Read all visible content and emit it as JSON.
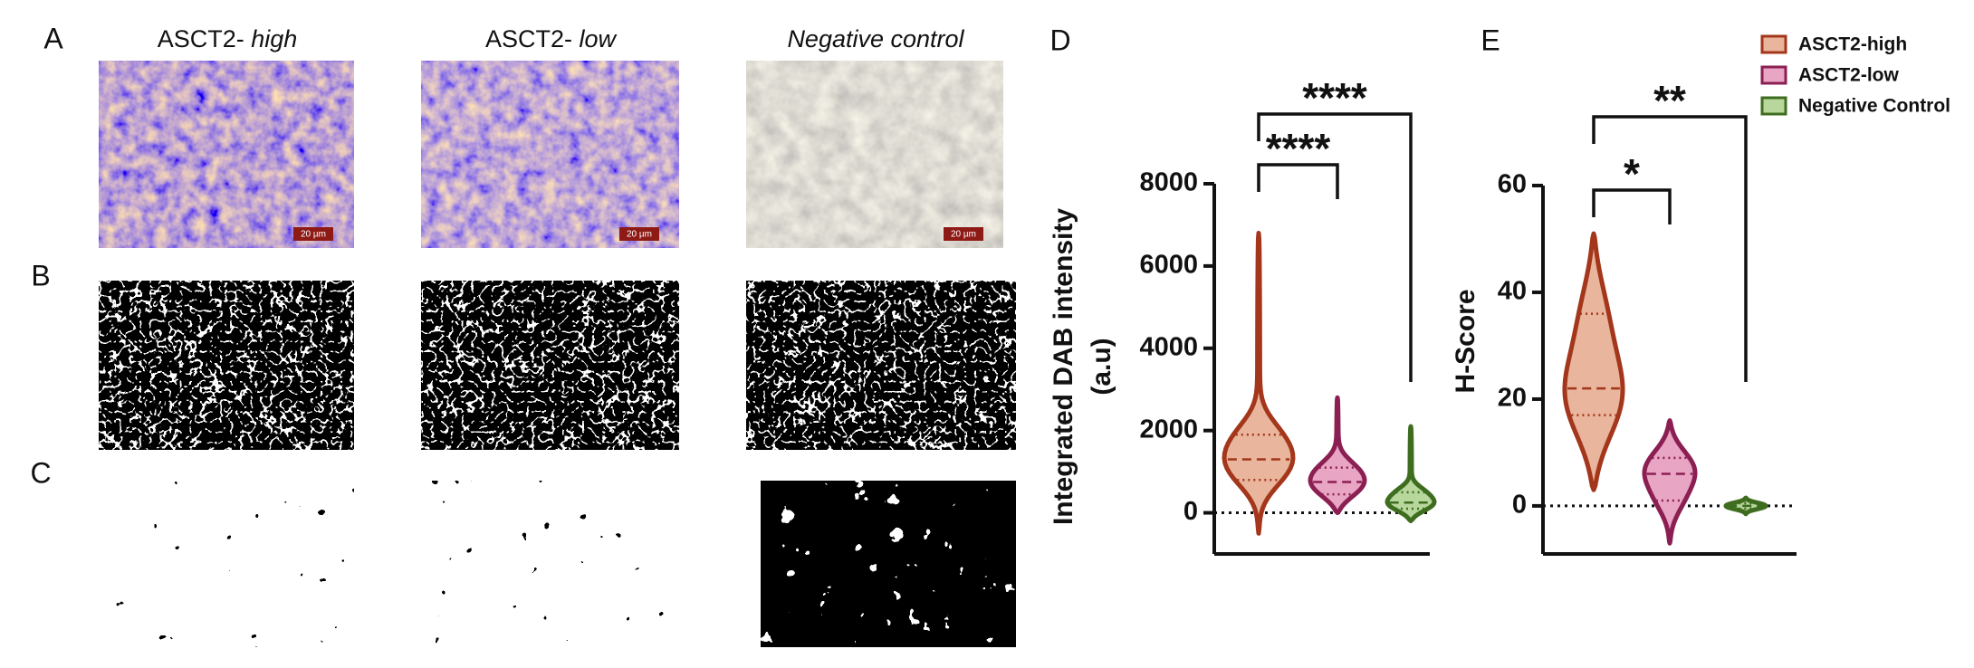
{
  "panel_letters": [
    "A",
    "B",
    "C",
    "D",
    "E"
  ],
  "columns": [
    {
      "prefix": "ASCT2- ",
      "emphasis": "high",
      "scale_bar": "20 µm"
    },
    {
      "prefix": "ASCT2- ",
      "emphasis": "low",
      "scale_bar": "20 µm"
    },
    {
      "emphasis": "Negative control",
      "scale_bar": "20 µm"
    }
  ],
  "chart_data": [
    {
      "type": "violin",
      "ylabel": [
        "Integrated DAB intensity",
        "(a.u)"
      ],
      "ylim": [
        -1000,
        8000
      ],
      "yticks": [
        0,
        2000,
        4000,
        6000,
        8000
      ],
      "zero_line": true,
      "series": [
        {
          "name": "ASCT2-high",
          "color": "#e9b59c",
          "edge_color": "#a3361b",
          "min": -500,
          "q1": 800,
          "median": 1300,
          "q3": 1900,
          "max": 6800
        },
        {
          "name": "ASCT2-low",
          "color": "#e8a5c4",
          "edge_color": "#8c1f52",
          "min": 0,
          "q1": 450,
          "median": 750,
          "q3": 1100,
          "max": 2800
        },
        {
          "name": "Negative Control",
          "color": "#b7d79d",
          "edge_color": "#3f6d1f",
          "min": -200,
          "q1": 100,
          "median": 250,
          "q3": 500,
          "max": 2100
        }
      ],
      "annotations": [
        {
          "text": "****",
          "from": "ASCT2-high",
          "to": "Negative Control"
        },
        {
          "text": "****",
          "from": "ASCT2-high",
          "to": "ASCT2-low"
        }
      ]
    },
    {
      "type": "violin",
      "ylabel": [
        "H-Score"
      ],
      "ylim": [
        -9,
        60
      ],
      "yticks": [
        0,
        20,
        40,
        60
      ],
      "zero_line": true,
      "legend": "top right",
      "series": [
        {
          "name": "ASCT2-high",
          "color": "#e9b59c",
          "edge_color": "#a3361b",
          "min": 3,
          "q1": 17,
          "median": 22,
          "q3": 36,
          "max": 51
        },
        {
          "name": "ASCT2-low",
          "color": "#e8a5c4",
          "edge_color": "#8c1f52",
          "min": -7,
          "q1": 1,
          "median": 6,
          "q3": 9,
          "max": 16
        },
        {
          "name": "Negative Control",
          "color": "#b7d79d",
          "edge_color": "#3f6d1f",
          "min": -1.5,
          "q1": -0.5,
          "median": 0,
          "q3": 0.5,
          "max": 1.5
        }
      ],
      "annotations": [
        {
          "text": "**",
          "from": "ASCT2-high",
          "to": "Negative Control"
        },
        {
          "text": "*",
          "from": "ASCT2-high",
          "to": "ASCT2-low"
        }
      ]
    }
  ]
}
